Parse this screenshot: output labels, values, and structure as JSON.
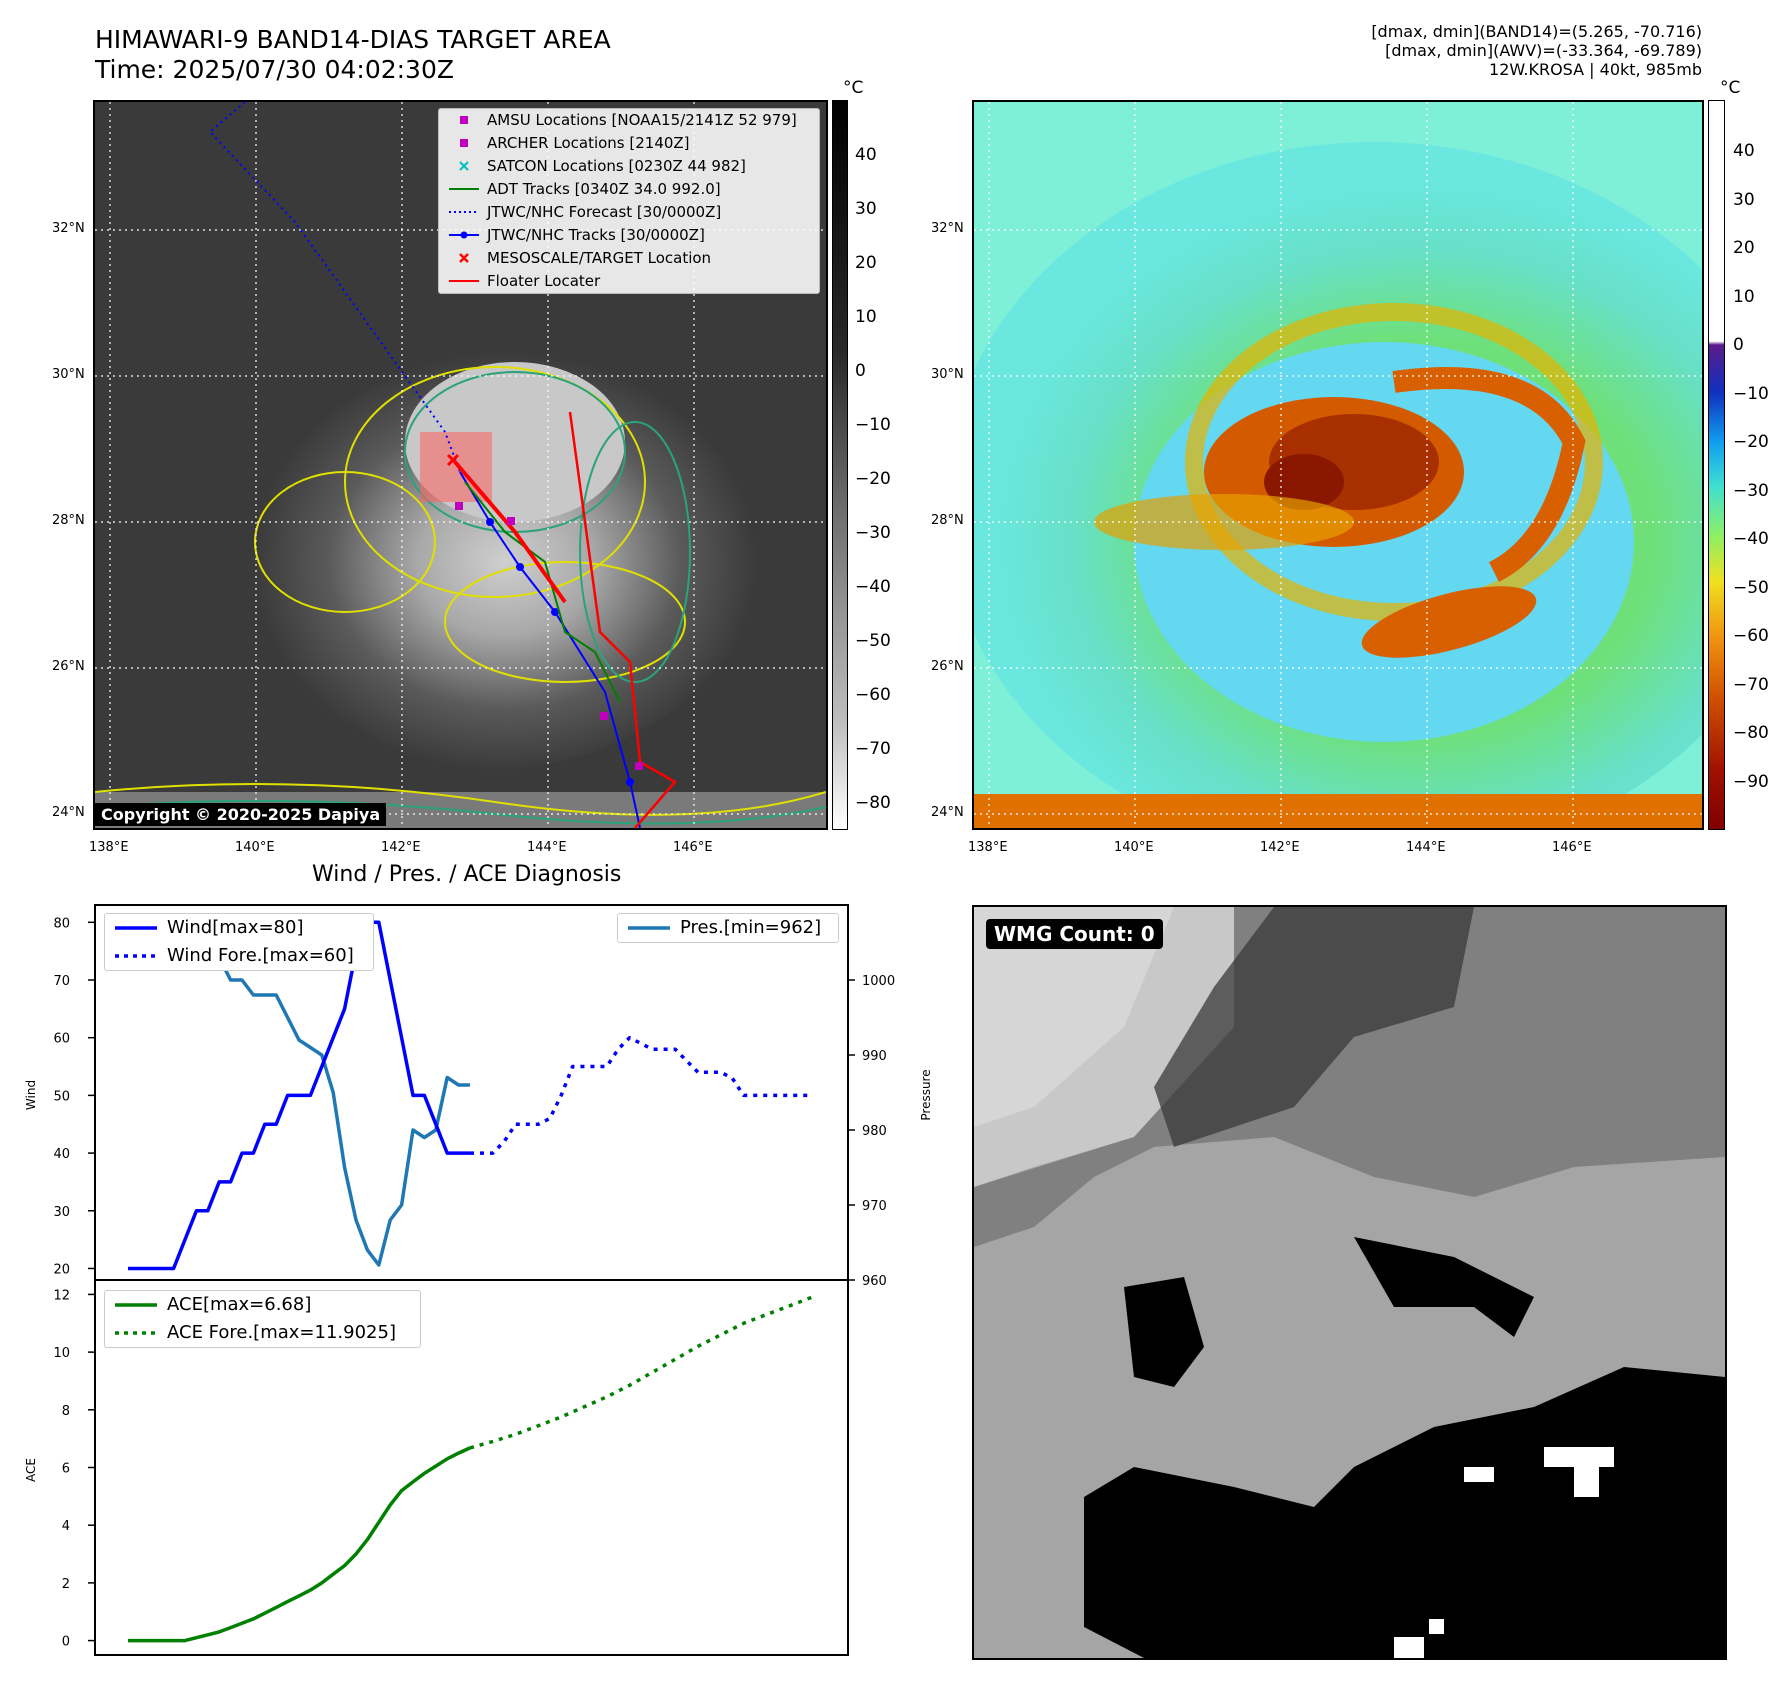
{
  "header": {
    "title_line1": "HIMAWARI-9 BAND14-DIAS TARGET AREA",
    "title_line2": "Time: 2025/07/30 04:02:30Z",
    "info_line1": "[dmax, dmin](BAND14)=(5.265, -70.716)",
    "info_line2": "[dmax, dmin](AWV)=(-33.364, -69.789)",
    "info_line3": "12W.KROSA | 40kt, 985mb"
  },
  "map": {
    "lon_labels": [
      "138°E",
      "140°E",
      "142°E",
      "144°E",
      "146°E"
    ],
    "lat_labels": [
      "32°N",
      "30°N",
      "28°N",
      "26°N",
      "24°N"
    ],
    "copyright": "Copyright © 2020-2025 Dapiya",
    "legend": [
      {
        "label": "AMSU Locations [NOAA15/2141Z 52 979]",
        "symbol": "square",
        "color": "#bf00bf"
      },
      {
        "label": "ARCHER Locations [2140Z]",
        "symbol": "square",
        "color": "#bf00bf"
      },
      {
        "label": "SATCON Locations [0230Z 44 982]",
        "symbol": "x",
        "color": "#00bfbf"
      },
      {
        "label": "ADT Tracks [0340Z 34.0 992.0]",
        "symbol": "line",
        "color": "#008000"
      },
      {
        "label": "JTWC/NHC Forecast [30/0000Z]",
        "symbol": "dotted",
        "color": "#0000ff"
      },
      {
        "label": "JTWC/NHC Tracks [30/0000Z]",
        "symbol": "line-dot",
        "color": "#0000ff"
      },
      {
        "label": "MESOSCALE/TARGET Location",
        "symbol": "x",
        "color": "#ff0000"
      },
      {
        "label": "Floater Locater",
        "symbol": "line",
        "color": "#ff0000"
      }
    ]
  },
  "colorbar_gray": {
    "unit": "°C",
    "ticks": [
      "40",
      "30",
      "20",
      "10",
      "0",
      "−10",
      "−20",
      "−30",
      "−40",
      "−50",
      "−60",
      "−70",
      "−80"
    ]
  },
  "colorbar_color": {
    "unit": "°C",
    "ticks": [
      "40",
      "30",
      "20",
      "10",
      "0",
      "−10",
      "−20",
      "−30",
      "−40",
      "−50",
      "−60",
      "−70",
      "−80",
      "−90"
    ]
  },
  "diag_title": "Wind / Pres. / ACE Diagnosis",
  "wmg": {
    "label": "WMG Count: 0"
  },
  "chart_data": [
    {
      "type": "line",
      "title": "Wind / Pres. / ACE Diagnosis",
      "ylabel": "Wind",
      "ylabel2": "Pressure",
      "ylim": [
        18,
        83
      ],
      "ylim2": [
        960,
        1010
      ],
      "yticks": [
        "80",
        "70",
        "60",
        "50",
        "40",
        "30",
        "20"
      ],
      "yticks2": [
        "1000",
        "990",
        "980",
        "970",
        "960"
      ],
      "series": [
        {
          "name": "Wind[max=80]",
          "color": "#0000ff",
          "style": "solid",
          "axis": "left",
          "x": [
            0,
            1,
            2,
            3,
            4,
            5,
            6,
            7,
            8,
            9,
            10,
            11,
            12,
            13,
            14,
            15,
            16,
            17,
            18,
            19,
            20,
            21,
            22,
            23,
            24,
            25,
            26,
            27,
            28,
            29,
            30
          ],
          "values": [
            20,
            20,
            20,
            20,
            20,
            25,
            30,
            30,
            35,
            35,
            40,
            40,
            45,
            45,
            50,
            50,
            50,
            55,
            60,
            65,
            75,
            80,
            80,
            70,
            60,
            50,
            50,
            45,
            40,
            40,
            40
          ]
        },
        {
          "name": "Wind Fore.[max=60]",
          "color": "#0000ff",
          "style": "dotted",
          "axis": "left",
          "x": [
            30,
            31,
            32,
            33,
            34,
            35,
            36,
            37,
            38,
            39,
            40,
            41,
            42,
            43,
            44,
            45,
            46,
            47,
            48,
            49,
            50,
            51,
            52,
            53,
            54,
            55,
            56,
            57,
            58,
            59,
            60
          ],
          "values": [
            40,
            40,
            40,
            42,
            45,
            45,
            45,
            46,
            50,
            55,
            55,
            55,
            55,
            58,
            60,
            59,
            58,
            58,
            58,
            56,
            54,
            54,
            54,
            53,
            50,
            50,
            50,
            50,
            50,
            50,
            50
          ]
        },
        {
          "name": "Pres.[min=962]",
          "color": "#1f77b4",
          "style": "solid",
          "axis": "right",
          "x": [
            0,
            1,
            2,
            3,
            4,
            5,
            6,
            7,
            8,
            9,
            10,
            11,
            12,
            13,
            14,
            15,
            16,
            17,
            18,
            19,
            20,
            21,
            22,
            23,
            24,
            25,
            26,
            27,
            28,
            29,
            30
          ],
          "values": [
            1007,
            1007,
            1007,
            1007,
            1005,
            1005,
            1004,
            1003,
            1003,
            1000,
            1000,
            998,
            998,
            998,
            995,
            992,
            991,
            990,
            985,
            975,
            968,
            964,
            962,
            968,
            970,
            980,
            979,
            980,
            987,
            986,
            986
          ]
        }
      ]
    },
    {
      "type": "line",
      "ylabel": "ACE",
      "ylim": [
        -0.5,
        12.5
      ],
      "yticks": [
        "12",
        "10",
        "8",
        "6",
        "4",
        "2",
        "0"
      ],
      "series": [
        {
          "name": "ACE[max=6.68]",
          "color": "#008000",
          "style": "solid",
          "x": [
            0,
            1,
            2,
            3,
            4,
            5,
            6,
            7,
            8,
            9,
            10,
            11,
            12,
            13,
            14,
            15,
            16,
            17,
            18,
            19,
            20,
            21,
            22,
            23,
            24,
            25,
            26,
            27,
            28,
            29,
            30
          ],
          "values": [
            0,
            0,
            0,
            0,
            0,
            0,
            0.1,
            0.2,
            0.3,
            0.45,
            0.6,
            0.75,
            0.95,
            1.15,
            1.35,
            1.55,
            1.75,
            2.0,
            2.3,
            2.6,
            3.0,
            3.5,
            4.1,
            4.7,
            5.2,
            5.5,
            5.8,
            6.05,
            6.3,
            6.5,
            6.68
          ]
        },
        {
          "name": "ACE Fore.[max=11.9025]",
          "color": "#008000",
          "style": "dotted",
          "x": [
            30,
            32,
            34,
            36,
            38,
            40,
            42,
            44,
            46,
            48,
            50,
            52,
            54,
            56,
            58,
            60
          ],
          "values": [
            6.68,
            6.9,
            7.15,
            7.45,
            7.75,
            8.1,
            8.45,
            8.85,
            9.3,
            9.75,
            10.2,
            10.6,
            11.0,
            11.3,
            11.6,
            11.9025
          ]
        }
      ]
    }
  ]
}
